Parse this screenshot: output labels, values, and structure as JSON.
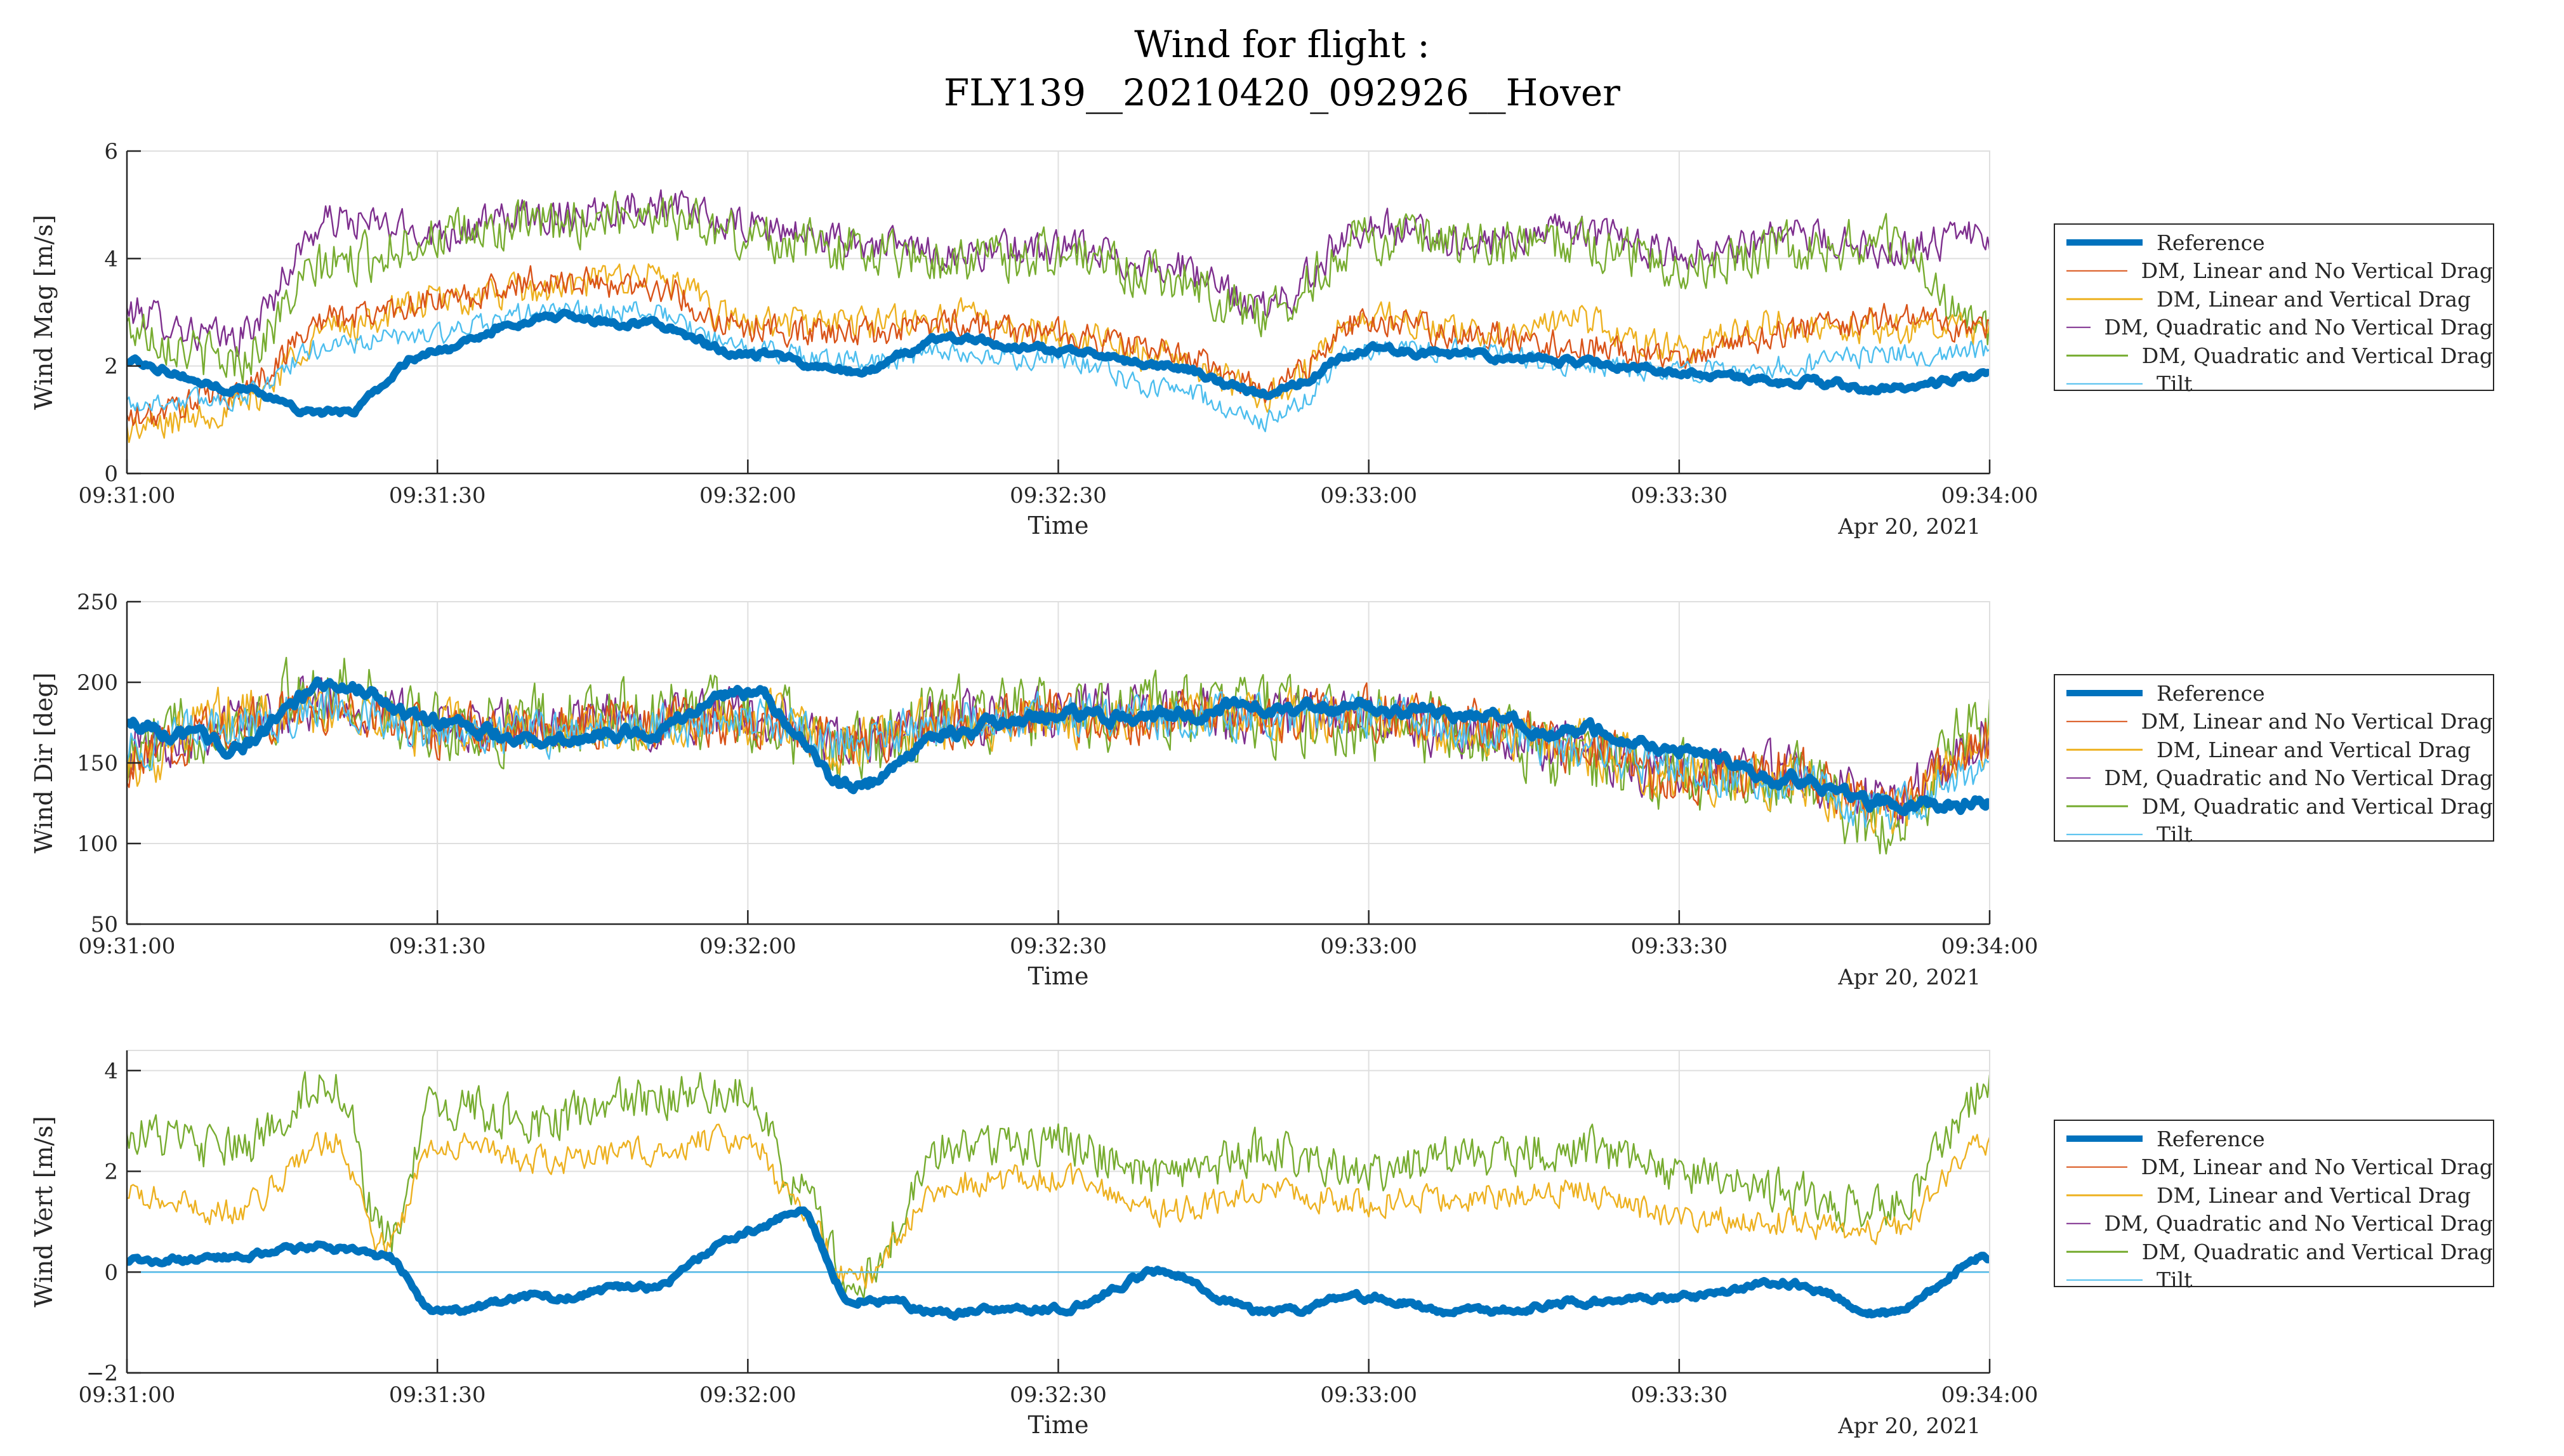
{
  "figure": {
    "title_line1": "Wind for flight :",
    "title_line2": "FLY139__20210420_092926__Hover"
  },
  "colors": {
    "reference": "#0072BD",
    "dm_linear_no_vert": "#D95319",
    "dm_linear_vert": "#EDB120",
    "dm_quad_no_vert": "#7E2F8E",
    "dm_quad_vert": "#77AC30",
    "tilt": "#4DBEEE"
  },
  "legend": {
    "entries": [
      {
        "label": "Reference",
        "color": "#0072BD"
      },
      {
        "label": "DM, Linear and No Vertical Drag",
        "color": "#D95319"
      },
      {
        "label": "DM, Linear and Vertical Drag",
        "color": "#EDB120"
      },
      {
        "label": "DM, Quadratic and No Vertical Drag",
        "color": "#7E2F8E"
      },
      {
        "label": "DM, Quadratic and Vertical Drag",
        "color": "#77AC30"
      },
      {
        "label": "Tilt",
        "color": "#4DBEEE"
      }
    ]
  },
  "chart_data": [
    {
      "type": "line",
      "id": "wind-mag",
      "ylabel": "Wind Mag [m/s]",
      "xlabel": "Time",
      "date_label": "Apr 20, 2021",
      "xlim": [
        0,
        180
      ],
      "ylim": [
        0,
        6
      ],
      "yticks": [
        0,
        2,
        4,
        6
      ],
      "ytick_labels": [
        "0",
        "2",
        "4",
        "6"
      ],
      "xticks": [
        0,
        30,
        60,
        90,
        120,
        150,
        180
      ],
      "xtick_labels": [
        "09:31:00",
        "09:31:30",
        "09:32:00",
        "09:32:30",
        "09:33:00",
        "09:33:30",
        "09:34:00"
      ],
      "grid": true,
      "x": [
        0,
        10,
        20,
        30,
        40,
        50,
        60,
        70,
        80,
        90,
        100,
        110,
        120,
        130,
        140,
        150,
        160,
        170,
        180
      ],
      "series": [
        {
          "name": "Reference",
          "values": [
            2.1,
            1.6,
            1.1,
            2.3,
            2.9,
            2.8,
            2.2,
            1.9,
            2.5,
            2.3,
            2.0,
            1.5,
            2.3,
            2.2,
            2.1,
            1.9,
            1.7,
            1.6,
            1.8
          ]
        },
        {
          "name": "DM, Linear and No Vertical Drag",
          "values": [
            1.0,
            1.5,
            2.9,
            3.2,
            3.6,
            3.5,
            2.7,
            2.6,
            2.8,
            2.6,
            2.3,
            1.6,
            2.8,
            2.6,
            2.4,
            2.1,
            2.6,
            2.9,
            2.7
          ]
        },
        {
          "name": "DM, Linear and Vertical Drag",
          "values": [
            0.8,
            1.2,
            2.7,
            3.2,
            3.4,
            3.7,
            2.8,
            2.8,
            2.9,
            2.6,
            2.2,
            1.5,
            2.9,
            2.6,
            2.8,
            2.3,
            2.8,
            2.7,
            2.6
          ]
        },
        {
          "name": "DM, Quadratic and No Vertical Drag",
          "values": [
            3.0,
            2.5,
            4.7,
            4.5,
            4.8,
            5.0,
            4.6,
            4.3,
            4.1,
            4.2,
            3.9,
            3.1,
            4.6,
            4.3,
            4.5,
            4.1,
            4.4,
            4.2,
            4.4
          ]
        },
        {
          "name": "DM, Quadratic and Vertical Drag",
          "values": [
            2.7,
            2.1,
            3.9,
            4.4,
            4.6,
            4.9,
            4.4,
            4.2,
            4.0,
            4.1,
            3.7,
            3.0,
            4.4,
            4.2,
            4.3,
            3.9,
            4.2,
            4.3,
            2.6
          ]
        },
        {
          "name": "Tilt",
          "values": [
            1.3,
            1.4,
            2.4,
            2.6,
            3.0,
            3.0,
            2.3,
            2.1,
            2.2,
            2.1,
            1.6,
            1.0,
            2.3,
            2.3,
            2.0,
            1.9,
            2.0,
            2.2,
            2.3
          ]
        }
      ]
    },
    {
      "type": "line",
      "id": "wind-dir",
      "ylabel": "Wind Dir [deg]",
      "xlabel": "Time",
      "date_label": "Apr 20, 2021",
      "xlim": [
        0,
        180
      ],
      "ylim": [
        50,
        250
      ],
      "yticks": [
        50,
        100,
        150,
        200,
        250
      ],
      "ytick_labels": [
        "50",
        "100",
        "150",
        "200",
        "250"
      ],
      "xticks": [
        0,
        30,
        60,
        90,
        120,
        150,
        180
      ],
      "xtick_labels": [
        "09:31:00",
        "09:31:30",
        "09:32:00",
        "09:32:30",
        "09:33:00",
        "09:33:30",
        "09:34:00"
      ],
      "grid": true,
      "x": [
        0,
        10,
        20,
        30,
        40,
        50,
        60,
        70,
        80,
        90,
        100,
        110,
        120,
        130,
        140,
        150,
        160,
        170,
        180
      ],
      "series": [
        {
          "name": "Reference",
          "values": [
            175,
            160,
            200,
            175,
            165,
            170,
            195,
            135,
            170,
            180,
            178,
            185,
            185,
            180,
            170,
            160,
            140,
            125,
            125
          ]
        },
        {
          "name": "DM, Linear and No Vertical Drag",
          "values": [
            150,
            175,
            185,
            170,
            170,
            175,
            175,
            165,
            175,
            180,
            178,
            180,
            180,
            175,
            160,
            140,
            145,
            125,
            160
          ]
        },
        {
          "name": "DM, Linear and Vertical Drag",
          "values": [
            150,
            180,
            180,
            170,
            170,
            170,
            178,
            160,
            175,
            178,
            180,
            178,
            175,
            170,
            160,
            145,
            140,
            120,
            165
          ]
        },
        {
          "name": "DM, Quadratic and No Vertical Drag",
          "values": [
            160,
            175,
            190,
            172,
            172,
            178,
            180,
            160,
            178,
            180,
            182,
            180,
            178,
            170,
            160,
            145,
            145,
            125,
            165
          ]
        },
        {
          "name": "DM, Quadratic and Vertical Drag",
          "values": [
            155,
            180,
            195,
            170,
            175,
            180,
            180,
            155,
            180,
            178,
            185,
            180,
            175,
            168,
            155,
            140,
            140,
            115,
            175
          ]
        },
        {
          "name": "Tilt",
          "values": [
            160,
            172,
            185,
            170,
            168,
            172,
            175,
            165,
            175,
            180,
            178,
            178,
            178,
            172,
            158,
            145,
            140,
            120,
            150
          ]
        }
      ]
    },
    {
      "type": "line",
      "id": "wind-vert",
      "ylabel": "Wind Vert [m/s]",
      "xlabel": "Time",
      "date_label": "Apr 20, 2021",
      "xlim": [
        0,
        180
      ],
      "ylim": [
        -2,
        4.4
      ],
      "yticks": [
        -2,
        0,
        2,
        4
      ],
      "ytick_labels": [
        "−2",
        "0",
        "2",
        "4"
      ],
      "xticks": [
        0,
        30,
        60,
        90,
        120,
        150,
        180
      ],
      "xtick_labels": [
        "09:31:00",
        "09:31:30",
        "09:32:00",
        "09:32:30",
        "09:33:00",
        "09:33:30",
        "09:34:00"
      ],
      "grid": true,
      "x": [
        0,
        10,
        20,
        25,
        30,
        40,
        50,
        60,
        65,
        70,
        80,
        90,
        100,
        110,
        120,
        130,
        140,
        150,
        160,
        170,
        180
      ],
      "series": [
        {
          "name": "Reference",
          "values": [
            0.2,
            0.3,
            0.5,
            0.3,
            -0.8,
            -0.5,
            -0.3,
            0.8,
            1.2,
            -0.5,
            -0.8,
            -0.7,
            0.0,
            -0.8,
            -0.5,
            -0.8,
            -0.6,
            -0.5,
            -0.2,
            -0.8,
            0.3
          ]
        },
        {
          "name": "DM, Linear and No Vertical Drag",
          "values": [
            0.0,
            0.0,
            0.0,
            0.0,
            0.0,
            0.0,
            0.0,
            0.0,
            0.0,
            0.0,
            0.0,
            0.0,
            0.0,
            0.0,
            0.0,
            0.0,
            0.0,
            0.0,
            0.0,
            0.0,
            0.0
          ]
        },
        {
          "name": "DM, Linear and Vertical Drag",
          "values": [
            1.5,
            1.2,
            2.6,
            0.5,
            2.6,
            2.2,
            2.4,
            2.7,
            1.3,
            -0.2,
            1.8,
            1.9,
            1.2,
            1.6,
            1.4,
            1.5,
            1.6,
            1.1,
            1.0,
            0.8,
            2.5
          ]
        },
        {
          "name": "DM, Quadratic and No Vertical Drag",
          "values": [
            0.0,
            0.0,
            0.0,
            0.0,
            0.0,
            0.0,
            0.0,
            0.0,
            0.0,
            0.0,
            0.0,
            0.0,
            0.0,
            0.0,
            0.0,
            0.0,
            0.0,
            0.0,
            0.0,
            0.0,
            0.0
          ]
        },
        {
          "name": "DM, Quadratic and Vertical Drag",
          "values": [
            2.8,
            2.4,
            3.8,
            0.6,
            3.3,
            3.0,
            3.4,
            3.6,
            1.6,
            -0.2,
            2.5,
            2.6,
            1.8,
            2.4,
            2.0,
            2.3,
            2.5,
            2.0,
            1.6,
            1.2,
            3.6
          ]
        },
        {
          "name": "Tilt",
          "values": [
            0.0,
            0.0,
            0.0,
            0.0,
            0.0,
            0.0,
            0.0,
            0.0,
            0.0,
            0.0,
            0.0,
            0.0,
            0.0,
            0.0,
            0.0,
            0.0,
            0.0,
            0.0,
            0.0,
            0.0,
            0.0
          ]
        }
      ]
    }
  ]
}
